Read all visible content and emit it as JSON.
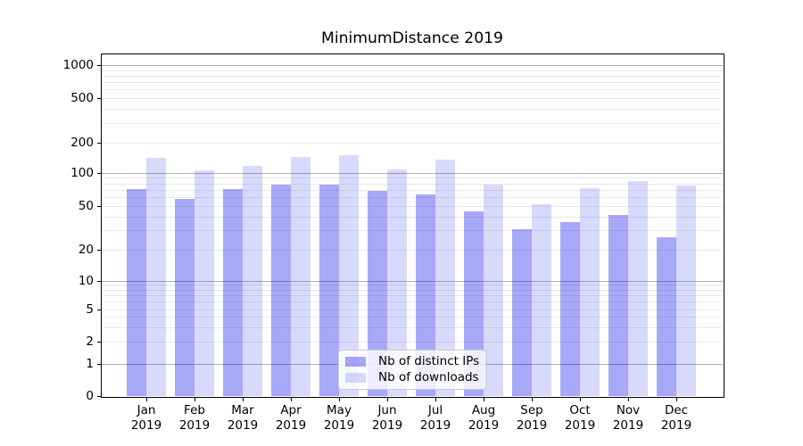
{
  "chart_data": {
    "type": "bar",
    "title": "MinimumDistance 2019",
    "x_year": "2019",
    "categories": [
      "Jan",
      "Feb",
      "Mar",
      "Apr",
      "May",
      "Jun",
      "Jul",
      "Aug",
      "Sep",
      "Oct",
      "Nov",
      "Dec"
    ],
    "series": [
      {
        "name": "Nb of distinct IPs",
        "color": "rgba(0,0,238,0.34)",
        "values": [
          72,
          59,
          72,
          78,
          78,
          69,
          64,
          45,
          31,
          36,
          42,
          26
        ]
      },
      {
        "name": "Nb of downloads",
        "color": "rgba(0,0,238,0.15)",
        "values": [
          140,
          107,
          118,
          143,
          150,
          109,
          135,
          79,
          52,
          73,
          84,
          77
        ]
      }
    ],
    "y_ticks": [
      1000,
      500,
      200,
      100,
      50,
      20,
      10,
      5,
      2,
      1,
      0
    ],
    "y_scale": "log above 1, linear 0-1 (symlog-like)",
    "ylim": [
      0,
      1300
    ],
    "grid": true,
    "legend_position": "lower center"
  },
  "colors": {
    "background": "#ffffff",
    "spine": "#000000",
    "grid_major": "#b0b0b0",
    "grid_minor": "#e9e9e9",
    "text": "#000000",
    "legend_border": "#cccccc",
    "legend_bg": "rgba(255,255,255,0.8)"
  }
}
